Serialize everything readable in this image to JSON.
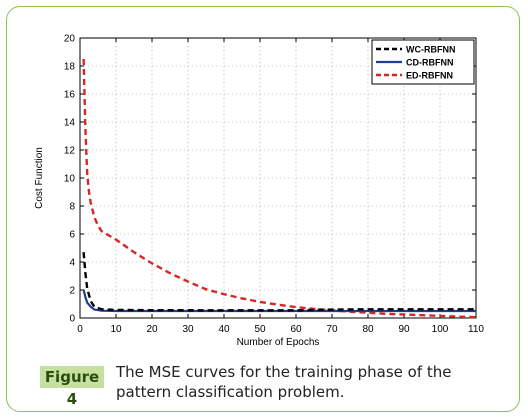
{
  "figure": {
    "label": "Figure 4",
    "caption": "The MSE curves for the training phase of the pattern classification problem."
  },
  "chart_data": {
    "type": "line",
    "title": "",
    "xlabel": "Number of Epochs",
    "ylabel": "Cost Function",
    "xlim": [
      0,
      110
    ],
    "ylim": [
      0,
      20
    ],
    "xticks": [
      "0",
      "10",
      "20",
      "30",
      "40",
      "50",
      "60",
      "70",
      "80",
      "90",
      "100",
      "110"
    ],
    "yticks": [
      "0",
      "2",
      "4",
      "6",
      "8",
      "10",
      "12",
      "14",
      "16",
      "18",
      "20"
    ],
    "grid": true,
    "legend_position": "top-right",
    "series": [
      {
        "name": "WC-RBFNN",
        "color": "#000000",
        "style": "dashed",
        "x": [
          1,
          1.5,
          2,
          3,
          4,
          6,
          10,
          20,
          40,
          60,
          70,
          80,
          90,
          100,
          110
        ],
        "y": [
          4.7,
          3.2,
          2.1,
          1.2,
          0.8,
          0.62,
          0.58,
          0.56,
          0.55,
          0.55,
          0.6,
          0.62,
          0.62,
          0.62,
          0.62
        ]
      },
      {
        "name": "CD-RBFNN",
        "color": "#1f3f8f",
        "style": "solid",
        "x": [
          1,
          1.5,
          2,
          3,
          4,
          6,
          10,
          20,
          40,
          60,
          80,
          100,
          110
        ],
        "y": [
          2.0,
          1.5,
          1.1,
          0.8,
          0.6,
          0.52,
          0.5,
          0.5,
          0.5,
          0.5,
          0.5,
          0.5,
          0.5
        ]
      },
      {
        "name": "ED-RBFNN",
        "color": "#d62728",
        "style": "dashed",
        "x": [
          1,
          1.5,
          2,
          2.5,
          3,
          4,
          5,
          6,
          8,
          10,
          15,
          20,
          25,
          30,
          35,
          40,
          45,
          50,
          55,
          60,
          65,
          70,
          75,
          80,
          85,
          90,
          95,
          100,
          105,
          110
        ],
        "y": [
          18.5,
          13.5,
          10.3,
          9.0,
          8.2,
          7.2,
          6.6,
          6.2,
          5.9,
          5.6,
          4.7,
          3.9,
          3.2,
          2.6,
          2.05,
          1.7,
          1.4,
          1.15,
          0.95,
          0.78,
          0.65,
          0.55,
          0.45,
          0.38,
          0.3,
          0.25,
          0.2,
          0.15,
          0.1,
          0.06
        ]
      }
    ]
  }
}
